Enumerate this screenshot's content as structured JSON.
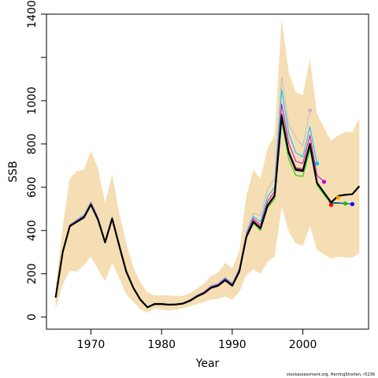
{
  "chart_data": {
    "type": "line",
    "title": "",
    "xlabel": "Year",
    "ylabel": "SSB",
    "credit": "stockassessment.org, HerringShorten, r5236",
    "xlim": [
      1963.7,
      2009.3
    ],
    "ylim": [
      -56,
      1400
    ],
    "x_ticks": [
      1970,
      1980,
      1990,
      2000
    ],
    "y_ticks": [
      0,
      200,
      400,
      600,
      800,
      1000,
      1200,
      1400
    ],
    "y_tick_labels": [
      "0",
      "200",
      "400",
      "600",
      "800",
      "1000",
      "",
      "1400"
    ],
    "colors": {
      "band": "#f5deb3",
      "main": "#000000",
      "peels": [
        "#ff0000",
        "#00cd00",
        "#0000ff",
        "#00bfff",
        "#cd00cd",
        "#bebebe",
        "#ffa500"
      ]
    },
    "grid": false,
    "legend": "none",
    "confidence_band": {
      "x": [
        1965,
        1966,
        1967,
        1968,
        1969,
        1970,
        1971,
        1972,
        1973,
        1974,
        1975,
        1976,
        1977,
        1978,
        1979,
        1980,
        1981,
        1982,
        1983,
        1984,
        1985,
        1986,
        1987,
        1988,
        1989,
        1990,
        1991,
        1992,
        1993,
        1994,
        1995,
        1996,
        1997,
        1998,
        1999,
        2000,
        2001,
        2002,
        2003,
        2004,
        2005,
        2006,
        2007,
        2008
      ],
      "lower": [
        40,
        150,
        215,
        210,
        240,
        280,
        220,
        165,
        250,
        180,
        105,
        70,
        35,
        20,
        40,
        35,
        30,
        35,
        40,
        50,
        60,
        70,
        80,
        85,
        95,
        80,
        115,
        195,
        220,
        200,
        255,
        280,
        510,
        395,
        340,
        330,
        420,
        310,
        290,
        270,
        280,
        275,
        275,
        295
      ],
      "upper": [
        140,
        420,
        640,
        675,
        680,
        770,
        685,
        530,
        660,
        480,
        340,
        230,
        160,
        115,
        100,
        100,
        100,
        98,
        98,
        110,
        130,
        155,
        190,
        205,
        250,
        225,
        305,
        560,
        680,
        640,
        780,
        840,
        1380,
        1130,
        1040,
        1025,
        1195,
        940,
        875,
        815,
        840,
        855,
        855,
        920
      ]
    },
    "series": [
      {
        "name": "",
        "color": "#000000",
        "x": [
          1965,
          1966,
          1967,
          1968,
          1969,
          1970,
          1971,
          1972,
          1973,
          1974,
          1975,
          1976,
          1977,
          1978,
          1979,
          1980,
          1981,
          1982,
          1983,
          1984,
          1985,
          1986,
          1987,
          1988,
          1989,
          1990,
          1991,
          1992,
          1993,
          1994,
          1995,
          1996,
          1997,
          1998,
          1999,
          2000,
          2001,
          2002,
          2003,
          2004,
          2005,
          2006,
          2007,
          2008
        ],
        "values": [
          90,
          300,
          420,
          440,
          460,
          520,
          450,
          345,
          455,
          330,
          210,
          135,
          80,
          45,
          60,
          60,
          57,
          58,
          62,
          75,
          95,
          110,
          135,
          145,
          170,
          145,
          210,
          370,
          440,
          410,
          515,
          560,
          930,
          760,
          680,
          675,
          800,
          620,
          575,
          530,
          560,
          565,
          568,
          605
        ]
      },
      {
        "name": "",
        "color": "#ff0000",
        "x": [
          1965,
          1966,
          1967,
          1968,
          1969,
          1970,
          1971,
          1972,
          1973,
          1974,
          1975,
          1976,
          1977,
          1978,
          1979,
          1980,
          1981,
          1982,
          1983,
          1984,
          1985,
          1986,
          1987,
          1988,
          1989,
          1990,
          1991,
          1992,
          1993,
          1994,
          1995,
          1996,
          1997,
          1998,
          1999,
          2000,
          2001,
          2002,
          2003,
          2004
        ],
        "values": [
          92,
          302,
          423,
          443,
          464,
          525,
          455,
          348,
          458,
          333,
          212,
          137,
          82,
          46,
          62,
          62,
          59,
          60,
          64,
          77,
          97,
          113,
          138,
          148,
          174,
          148,
          214,
          375,
          446,
          415,
          520,
          566,
          940,
          770,
          690,
          685,
          805,
          625,
          575,
          518
        ],
        "last_point": [
          2004,
          518
        ]
      },
      {
        "name": "",
        "color": "#00cd00",
        "x": [
          1965,
          1966,
          1967,
          1968,
          1969,
          1970,
          1971,
          1972,
          1973,
          1974,
          1975,
          1976,
          1977,
          1978,
          1979,
          1980,
          1981,
          1982,
          1983,
          1984,
          1985,
          1986,
          1987,
          1988,
          1989,
          1990,
          1991,
          1992,
          1993,
          1994,
          1995,
          1996,
          1997,
          1998,
          1999,
          2000,
          2001,
          2002,
          2003,
          2004,
          2005,
          2006
        ],
        "values": [
          91,
          300,
          420,
          440,
          460,
          520,
          450,
          346,
          455,
          330,
          210,
          135,
          80,
          45,
          60,
          60,
          57,
          58,
          62,
          75,
          95,
          110,
          135,
          145,
          170,
          145,
          210,
          368,
          432,
          400,
          505,
          545,
          905,
          730,
          655,
          650,
          775,
          610,
          565,
          525,
          525,
          525
        ],
        "last_point": [
          2006,
          525
        ]
      },
      {
        "name": "",
        "color": "#0000ff",
        "x": [
          1965,
          1966,
          1967,
          1968,
          1969,
          1970,
          1971,
          1972,
          1973,
          1974,
          1975,
          1976,
          1977,
          1978,
          1979,
          1980,
          1981,
          1982,
          1983,
          1984,
          1985,
          1986,
          1987,
          1988,
          1989,
          1990,
          1991,
          1992,
          1993,
          1994,
          1995,
          1996,
          1997,
          1998,
          1999,
          2000,
          2001,
          2002,
          2003,
          2004,
          2005,
          2006,
          2007
        ],
        "values": [
          90,
          301,
          422,
          442,
          462,
          522,
          452,
          347,
          457,
          332,
          211,
          136,
          81,
          46,
          61,
          61,
          58,
          59,
          63,
          76,
          96,
          112,
          137,
          147,
          172,
          147,
          212,
          372,
          442,
          412,
          517,
          562,
          935,
          765,
          685,
          680,
          802,
          622,
          575,
          528,
          528,
          525,
          522
        ],
        "last_point": [
          2007,
          522
        ]
      },
      {
        "name": "",
        "color": "#00bfff",
        "x": [
          1965,
          1966,
          1967,
          1968,
          1969,
          1970,
          1971,
          1972,
          1973,
          1974,
          1975,
          1976,
          1977,
          1978,
          1979,
          1980,
          1981,
          1982,
          1983,
          1984,
          1985,
          1986,
          1987,
          1988,
          1989,
          1990,
          1991,
          1992,
          1993,
          1994,
          1995,
          1996,
          1997,
          1998,
          1999,
          2000,
          2001,
          2002
        ],
        "values": [
          93,
          303,
          425,
          448,
          470,
          530,
          460,
          352,
          462,
          337,
          215,
          139,
          84,
          48,
          64,
          64,
          61,
          62,
          66,
          80,
          100,
          116,
          142,
          152,
          180,
          154,
          222,
          385,
          465,
          440,
          555,
          600,
          1050,
          850,
          760,
          740,
          880,
          710
        ],
        "last_point": [
          2002,
          710
        ]
      },
      {
        "name": "",
        "color": "#cd00cd",
        "x": [
          1965,
          1966,
          1967,
          1968,
          1969,
          1970,
          1971,
          1972,
          1973,
          1974,
          1975,
          1976,
          1977,
          1978,
          1979,
          1980,
          1981,
          1982,
          1983,
          1984,
          1985,
          1986,
          1987,
          1988,
          1989,
          1990,
          1991,
          1992,
          1993,
          1994,
          1995,
          1996,
          1997,
          1998,
          1999,
          2000,
          2001,
          2002,
          2003
        ],
        "values": [
          92,
          302,
          424,
          445,
          466,
          527,
          457,
          350,
          460,
          335,
          214,
          138,
          83,
          47,
          63,
          63,
          60,
          61,
          65,
          78,
          98,
          115,
          140,
          150,
          177,
          151,
          218,
          380,
          455,
          425,
          535,
          580,
          985,
          805,
          720,
          710,
          840,
          655,
          625
        ],
        "last_point": [
          2003,
          625
        ]
      },
      {
        "name": "",
        "color": "#bebebe",
        "x": [
          1965,
          1966,
          1967,
          1968,
          1969,
          1970,
          1971,
          1972,
          1973,
          1974,
          1975,
          1976,
          1977,
          1978,
          1979,
          1980,
          1981,
          1982,
          1983,
          1984,
          1985,
          1986,
          1987,
          1988,
          1989,
          1990,
          1991,
          1992,
          1993,
          1994,
          1995,
          1996,
          1997,
          1998,
          1999,
          2000,
          2001
        ],
        "values": [
          94,
          305,
          428,
          452,
          474,
          535,
          465,
          355,
          466,
          340,
          218,
          141,
          86,
          49,
          65,
          65,
          62,
          63,
          67,
          82,
          103,
          119,
          146,
          156,
          185,
          158,
          228,
          395,
          480,
          470,
          590,
          640,
          1110,
          890,
          830,
          790,
          955
        ],
        "last_point": [
          2001,
          955
        ]
      },
      {
        "name": "",
        "color": "#ffa500",
        "x": [
          1965,
          1966,
          1967,
          1968,
          1969,
          1970,
          1971,
          1972,
          1973,
          1974,
          1975,
          1976,
          1977,
          1978,
          1979,
          1980,
          1981,
          1982,
          1983,
          1984,
          1985,
          1986,
          1987,
          1988,
          1989,
          1990,
          1991,
          1992,
          1993,
          1994,
          1995,
          1996,
          1997,
          1998,
          1999,
          2000,
          2001,
          2002,
          2003,
          2004,
          2005
        ],
        "values": [
          91,
          301,
          421,
          441,
          461,
          521,
          451,
          346,
          456,
          331,
          211,
          136,
          81,
          46,
          61,
          61,
          58,
          59,
          63,
          76,
          96,
          111,
          136,
          146,
          171,
          146,
          211,
          371,
          438,
          408,
          512,
          557,
          925,
          755,
          678,
          672,
          798,
          618,
          572,
          530,
          552
        ],
        "last_point": [
          2005,
          552
        ]
      }
    ]
  }
}
